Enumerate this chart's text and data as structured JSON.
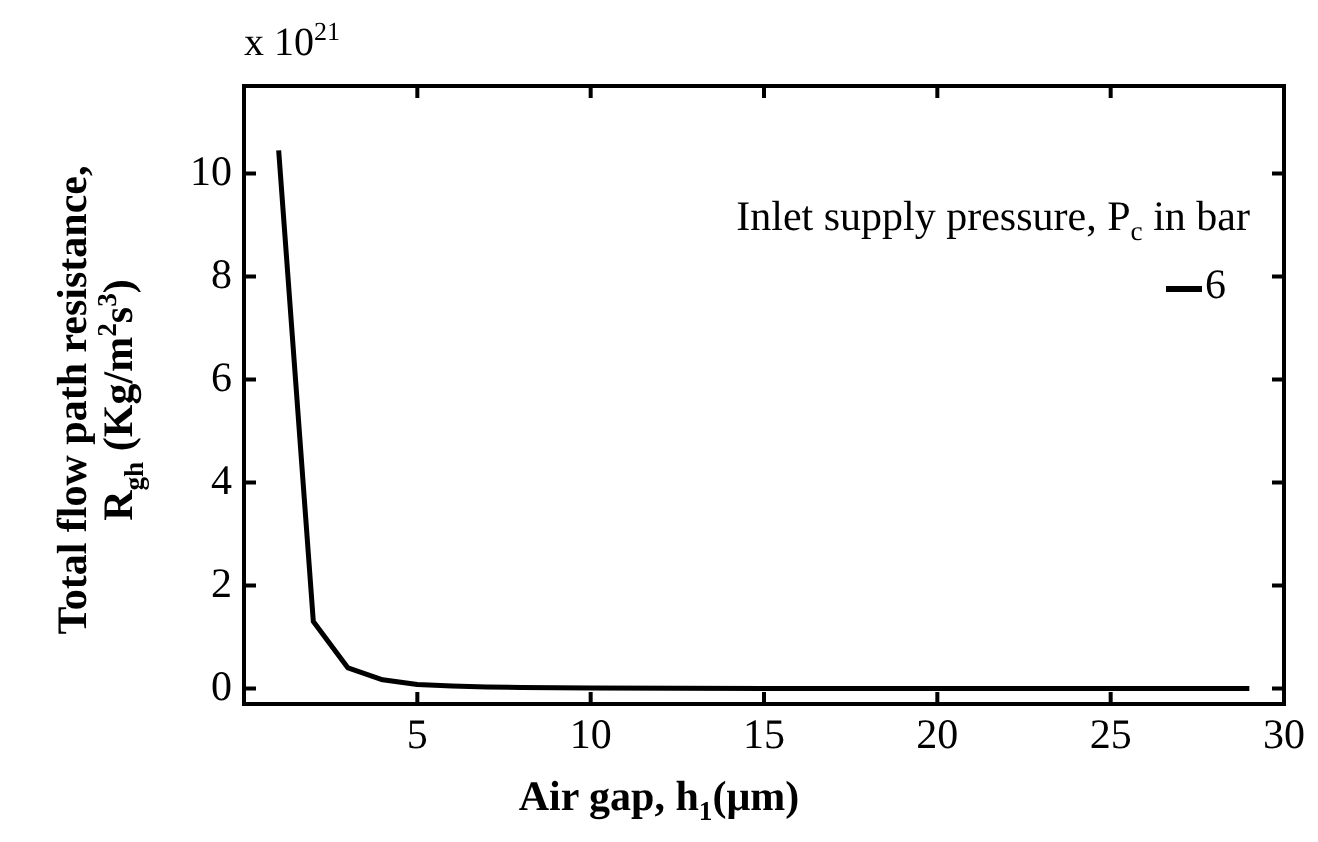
{
  "chart_data": {
    "type": "line",
    "xlabel": "Air gap, h$_{1}$(μm)",
    "ylabel": "Total flow path resistance,\nR$_{gh}$ (Kg/m$^{2}$s$^{3}$)",
    "legend_title": "Inlet supply pressure, P$_{c}$ in bar",
    "annotations": [
      "x 10$^{21}$"
    ],
    "series": [
      {
        "name": "6",
        "color": "#000000",
        "x": [
          1,
          2,
          3,
          4,
          5,
          6,
          7,
          8,
          10,
          15,
          20,
          25,
          29
        ],
        "values": [
          10.45,
          1.3,
          0.4,
          0.17,
          0.08,
          0.05,
          0.03,
          0.02,
          0.01,
          0,
          0,
          0,
          0
        ]
      }
    ],
    "xlim": [
      0,
      30
    ],
    "xticks": [
      5,
      10,
      15,
      20,
      25,
      30
    ],
    "ylim": [
      -0.3,
      11.7
    ],
    "yticks": [
      0,
      2,
      4,
      6,
      8,
      10
    ],
    "grid": false,
    "legend": "top right",
    "marker": "none",
    "line_style": "solid"
  }
}
